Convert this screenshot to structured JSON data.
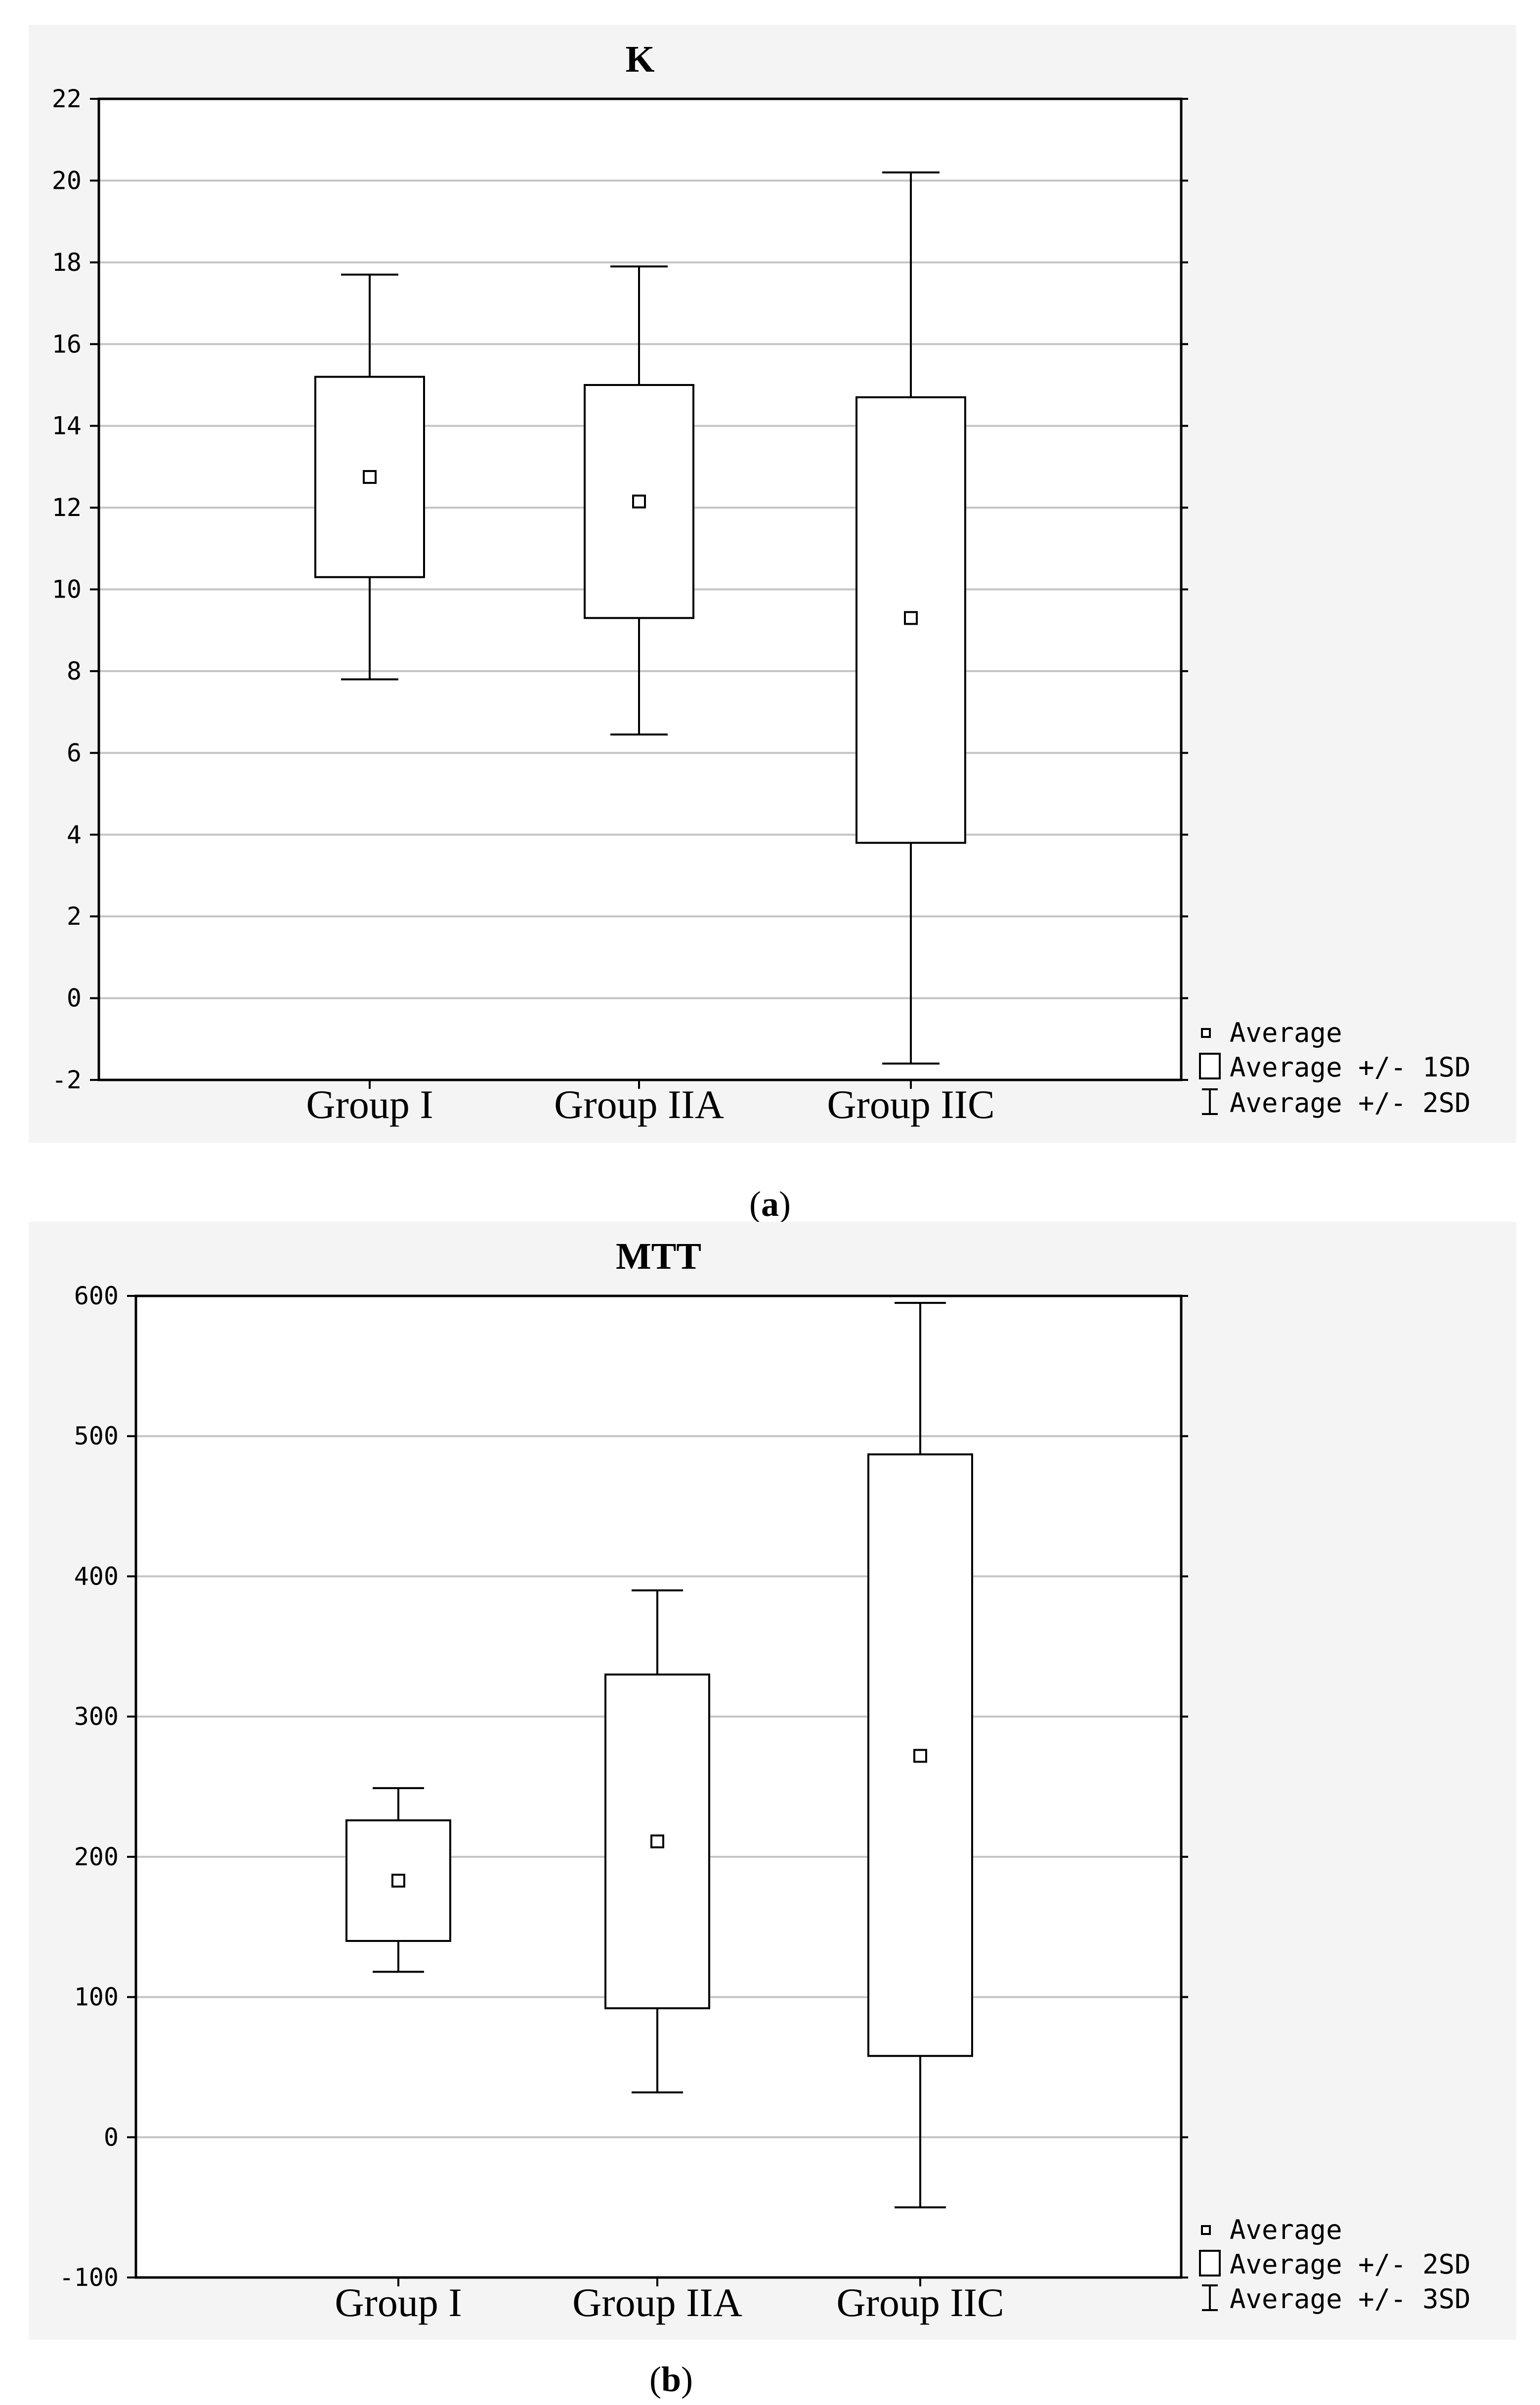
{
  "chart_data": [
    {
      "panel_label": "a",
      "type": "box",
      "title": "K",
      "categories": [
        "Group I",
        "Group IIA",
        "Group IIC"
      ],
      "ylim": [
        -2,
        22
      ],
      "yticks": [
        -2,
        0,
        2,
        4,
        6,
        8,
        10,
        12,
        14,
        16,
        18,
        20,
        22
      ],
      "grid": true,
      "legend_position": "bottom-right",
      "series": [
        {
          "category": "Group I",
          "mean": 12.75,
          "box_low": 10.3,
          "box_high": 15.2,
          "whisker_low": 7.8,
          "whisker_high": 17.7
        },
        {
          "category": "Group IIA",
          "mean": 12.15,
          "box_low": 9.3,
          "box_high": 15.0,
          "whisker_low": 6.45,
          "whisker_high": 17.9
        },
        {
          "category": "Group IIC",
          "mean": 9.3,
          "box_low": 3.8,
          "box_high": 14.7,
          "whisker_low": -1.6,
          "whisker_high": 20.2
        }
      ],
      "legend": [
        "Average",
        "Average +/- 1SD",
        "Average +/- 2SD"
      ]
    },
    {
      "panel_label": "b",
      "type": "box",
      "title": "MTT",
      "categories": [
        "Group I",
        "Group IIA",
        "Group IIC"
      ],
      "ylim": [
        -100,
        600
      ],
      "yticks": [
        -100,
        0,
        100,
        200,
        300,
        400,
        500,
        600
      ],
      "grid": true,
      "legend_position": "bottom-right",
      "series": [
        {
          "category": "Group I",
          "mean": 183,
          "box_low": 140,
          "box_high": 226,
          "whisker_low": 118,
          "whisker_high": 249
        },
        {
          "category": "Group IIA",
          "mean": 211,
          "box_low": 92,
          "box_high": 330,
          "whisker_low": 32,
          "whisker_high": 390
        },
        {
          "category": "Group IIC",
          "mean": 272,
          "box_low": 58,
          "box_high": 487,
          "whisker_low": -50,
          "whisker_high": 595
        }
      ],
      "legend": [
        "Average",
        "Average +/- 2SD",
        "Average +/- 3SD"
      ]
    }
  ]
}
